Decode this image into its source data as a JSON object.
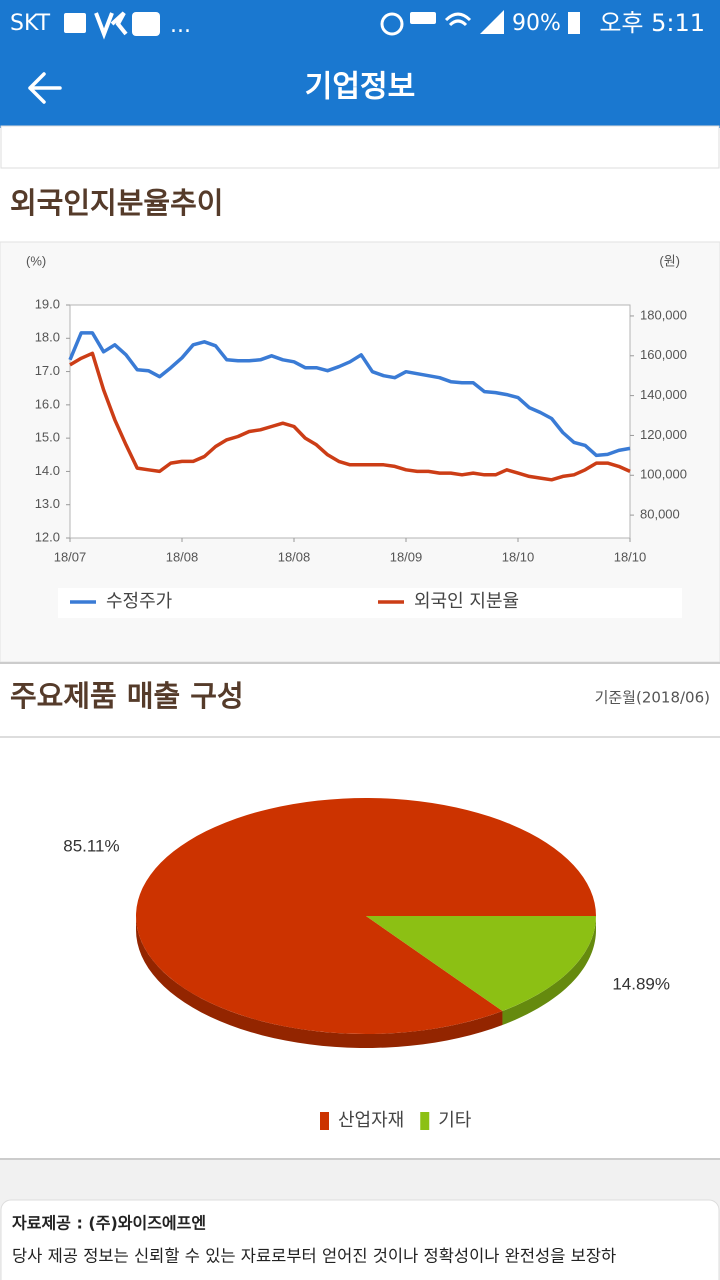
{
  "status_bar": {
    "carrier": "SKT",
    "more": "...",
    "battery": "90%",
    "time": "오후 5:11"
  },
  "header": {
    "title": "기업정보"
  },
  "sections": [
    {
      "title": "외국인지분율추이"
    },
    {
      "title": "주요제품 매출 구성",
      "note": "기준월(2018/06)"
    }
  ],
  "chart_data": [
    {
      "type": "line",
      "y_label": "(%)",
      "y2_label": "(원)",
      "categories": [
        "18/07",
        null,
        null,
        null,
        null,
        null,
        null,
        null,
        null,
        null,
        "18/08",
        null,
        null,
        null,
        null,
        null,
        null,
        null,
        null,
        null,
        "18/08",
        null,
        null,
        null,
        null,
        null,
        null,
        null,
        null,
        null,
        "18/09",
        null,
        null,
        null,
        null,
        null,
        null,
        null,
        null,
        null,
        "18/10",
        null,
        null,
        null,
        null,
        null,
        null,
        null,
        null,
        null,
        "18/10"
      ],
      "ylim": [
        12,
        19
      ],
      "yticks": [
        {
          "value": 12,
          "label": "12.0"
        },
        {
          "value": 13,
          "label": "13.0"
        },
        {
          "value": 14,
          "label": "14.0"
        },
        {
          "value": 15,
          "label": "15.0"
        },
        {
          "value": 16,
          "label": "16.0"
        },
        {
          "value": 17,
          "label": "17.0"
        },
        {
          "value": 18,
          "label": "18.0"
        },
        {
          "value": 19,
          "label": "19.0"
        }
      ],
      "y2lim": [
        68500,
        185500
      ],
      "y2ticks": [
        {
          "value": 80000,
          "label": "80,000"
        },
        {
          "value": 100000,
          "label": "100,000"
        },
        {
          "value": 120000,
          "label": "120,000"
        },
        {
          "value": 140000,
          "label": "140,000"
        },
        {
          "value": 160000,
          "label": "160,000"
        },
        {
          "value": 180000,
          "label": "180,000"
        }
      ],
      "legend": "bottom",
      "series": [
        {
          "name": "수정주가",
          "color": "#3a7bd5",
          "axis": "y2",
          "values": [
            158000,
            171500,
            171500,
            162000,
            165500,
            160500,
            153000,
            152500,
            149500,
            154000,
            159000,
            165500,
            167000,
            165000,
            158000,
            157500,
            157500,
            158000,
            160000,
            158000,
            157000,
            154000,
            154000,
            152500,
            154500,
            157000,
            160500,
            152000,
            150000,
            149000,
            152000,
            151000,
            150000,
            149000,
            147000,
            146500,
            146500,
            142000,
            141500,
            140500,
            139000,
            134000,
            131500,
            128500,
            121500,
            116500,
            115000,
            110000,
            110500,
            112500,
            113500
          ]
        },
        {
          "name": "외국인 지분율",
          "color": "#cc3d16",
          "values": [
            17.2,
            17.4,
            17.55,
            16.45,
            15.55,
            14.8,
            14.1,
            14.05,
            14.0,
            14.25,
            14.3,
            14.3,
            14.45,
            14.75,
            14.95,
            15.05,
            15.2,
            15.25,
            15.35,
            15.45,
            15.35,
            15.0,
            14.8,
            14.5,
            14.3,
            14.2,
            14.2,
            14.2,
            14.2,
            14.15,
            14.05,
            14.0,
            14.0,
            13.95,
            13.95,
            13.9,
            13.95,
            13.9,
            13.9,
            14.05,
            13.95,
            13.85,
            13.8,
            13.75,
            13.85,
            13.9,
            14.05,
            14.25,
            14.25,
            14.15,
            14.0
          ]
        }
      ]
    },
    {
      "type": "pie",
      "categories": [
        "산업자재",
        "기타"
      ],
      "values": [
        85.11,
        14.89
      ],
      "value_labels": [
        "85.11%",
        "14.89%"
      ],
      "colors": [
        "#cc3300",
        "#8cc014"
      ],
      "legend": "bottom"
    }
  ],
  "footer": {
    "source": "자료제공 : (주)와이즈에프엔",
    "disclaimer": "당사 제공 정보는 신뢰할 수 있는 자료로부터 얻어진 것이나 정확성이나 완전성을 보장하"
  }
}
